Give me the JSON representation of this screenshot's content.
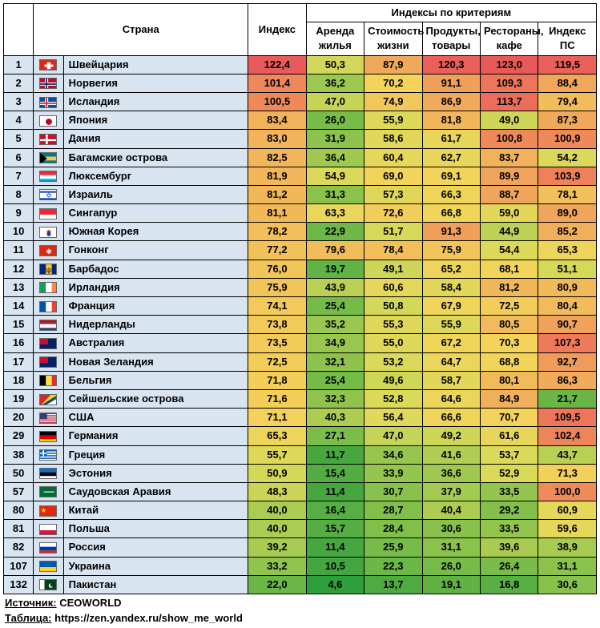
{
  "headers": {
    "country": "Страна",
    "index": "Индекс",
    "criteria_group": "Индексы по критериям",
    "rent": "Аренда жилья",
    "cost": "Стоимость жизни",
    "groceries": "Продукты, товары",
    "restaurants": "Рестораны, кафе",
    "pp": "Индекс ПС"
  },
  "footer": {
    "source_label": "Источник:",
    "source_value": "CEOWORLD",
    "table_label": "Таблица:",
    "table_value": "https://zen.yandex.ru/show_me_world"
  },
  "colorScale": {
    "min": 4.6,
    "max": 123.0,
    "stops": [
      {
        "v": 0.0,
        "c": "#2f9e3d"
      },
      {
        "v": 0.2,
        "c": "#7fbf4a"
      },
      {
        "v": 0.4,
        "c": "#d8d95a"
      },
      {
        "v": 0.55,
        "c": "#f3d45a"
      },
      {
        "v": 0.7,
        "c": "#f0a95a"
      },
      {
        "v": 0.85,
        "c": "#ee7e5a"
      },
      {
        "v": 1.0,
        "c": "#e85a5a"
      }
    ]
  },
  "flags": {
    "CH": [
      [
        "h",
        "#d52b1e",
        0,
        1
      ],
      [
        "rect",
        "#fff",
        0.4,
        0.2,
        0.2,
        0.6
      ],
      [
        "rect",
        "#fff",
        0.25,
        0.4,
        0.5,
        0.2
      ]
    ],
    "NO": [
      [
        "h",
        "#ba0c2f",
        0,
        1
      ],
      [
        "rect",
        "#fff",
        0.28,
        0,
        0.18,
        1
      ],
      [
        "rect",
        "#fff",
        0,
        0.36,
        1,
        0.28
      ],
      [
        "rect",
        "#00205b",
        0.33,
        0,
        0.08,
        1
      ],
      [
        "rect",
        "#00205b",
        0,
        0.44,
        1,
        0.12
      ]
    ],
    "IS": [
      [
        "h",
        "#02529c",
        0,
        1
      ],
      [
        "rect",
        "#fff",
        0.28,
        0,
        0.18,
        1
      ],
      [
        "rect",
        "#fff",
        0,
        0.36,
        1,
        0.28
      ],
      [
        "rect",
        "#dc1e35",
        0.33,
        0,
        0.08,
        1
      ],
      [
        "rect",
        "#dc1e35",
        0,
        0.44,
        1,
        0.12
      ]
    ],
    "JP": [
      [
        "h",
        "#fff",
        0,
        1
      ],
      [
        "circle",
        "#bc002d",
        0.5,
        0.5,
        0.28
      ]
    ],
    "DK": [
      [
        "h",
        "#c8102e",
        0,
        1
      ],
      [
        "rect",
        "#fff",
        0.32,
        0,
        0.12,
        1
      ],
      [
        "rect",
        "#fff",
        0,
        0.42,
        1,
        0.16
      ]
    ],
    "BS": [
      [
        "h",
        "#00778b",
        0,
        0.333
      ],
      [
        "h",
        "#ffc72c",
        0.333,
        0.333
      ],
      [
        "h",
        "#00778b",
        0.666,
        0.334
      ],
      [
        "tri",
        "#000",
        0,
        0,
        0.4,
        0.5,
        0,
        1
      ]
    ],
    "LU": [
      [
        "h",
        "#ed2939",
        0,
        0.333
      ],
      [
        "h",
        "#fff",
        0.333,
        0.333
      ],
      [
        "h",
        "#00a1de",
        0.666,
        0.334
      ]
    ],
    "IL": [
      [
        "h",
        "#fff",
        0,
        1
      ],
      [
        "h",
        "#0038b8",
        0.12,
        0.14
      ],
      [
        "h",
        "#0038b8",
        0.74,
        0.14
      ],
      [
        "text",
        "✡",
        "#0038b8",
        0.5,
        0.5
      ]
    ],
    "SG": [
      [
        "h",
        "#ed2939",
        0,
        0.5
      ],
      [
        "h",
        "#fff",
        0.5,
        0.5
      ]
    ],
    "KR": [
      [
        "h",
        "#fff",
        0,
        1
      ],
      [
        "circle",
        "#cd2e3a",
        0.5,
        0.4,
        0.18
      ],
      [
        "circle",
        "#0047a0",
        0.5,
        0.6,
        0.18
      ]
    ],
    "HK": [
      [
        "h",
        "#de2910",
        0,
        1
      ],
      [
        "text",
        "✱",
        "#fff",
        0.5,
        0.5
      ]
    ],
    "BB": [
      [
        "v",
        "#00267f",
        0,
        0.333
      ],
      [
        "v",
        "#ffc726",
        0.333,
        0.334
      ],
      [
        "v",
        "#00267f",
        0.667,
        0.333
      ],
      [
        "text",
        "ψ",
        "#000",
        0.5,
        0.5
      ]
    ],
    "IE": [
      [
        "v",
        "#169b62",
        0,
        0.333
      ],
      [
        "v",
        "#fff",
        0.333,
        0.334
      ],
      [
        "v",
        "#ff883e",
        0.667,
        0.333
      ]
    ],
    "FR": [
      [
        "v",
        "#0055a4",
        0,
        0.333
      ],
      [
        "v",
        "#fff",
        0.333,
        0.334
      ],
      [
        "v",
        "#ef4135",
        0.667,
        0.333
      ]
    ],
    "NL": [
      [
        "h",
        "#ae1c28",
        0,
        0.333
      ],
      [
        "h",
        "#fff",
        0.333,
        0.333
      ],
      [
        "h",
        "#21468b",
        0.666,
        0.334
      ]
    ],
    "AU": [
      [
        "h",
        "#012169",
        0,
        1
      ],
      [
        "rect",
        "#c8102e",
        0,
        0,
        0.45,
        0.5
      ]
    ],
    "NZ": [
      [
        "h",
        "#012169",
        0,
        1
      ],
      [
        "rect",
        "#c8102e",
        0,
        0,
        0.45,
        0.5
      ]
    ],
    "BE": [
      [
        "v",
        "#000",
        0,
        0.333
      ],
      [
        "v",
        "#fae042",
        0.333,
        0.334
      ],
      [
        "v",
        "#ed2939",
        0.667,
        0.333
      ]
    ],
    "SC": [
      [
        "h",
        "#003f87",
        0,
        1
      ],
      [
        "tri",
        "#fcd116",
        0,
        0,
        1,
        0,
        0,
        1
      ],
      [
        "tri",
        "#d62828",
        0,
        0,
        0.6,
        0,
        0,
        1
      ],
      [
        "tri",
        "#007a3d",
        1,
        1,
        1,
        0,
        0.4,
        1
      ],
      [
        "tri",
        "#fff",
        1,
        1,
        1,
        0.3,
        0.2,
        1
      ]
    ],
    "US": [
      [
        "h",
        "#b22234",
        0,
        1
      ],
      [
        "h",
        "#fff",
        0.077,
        0.077
      ],
      [
        "h",
        "#fff",
        0.231,
        0.077
      ],
      [
        "h",
        "#fff",
        0.385,
        0.077
      ],
      [
        "h",
        "#fff",
        0.538,
        0.077
      ],
      [
        "h",
        "#fff",
        0.692,
        0.077
      ],
      [
        "h",
        "#fff",
        0.846,
        0.077
      ],
      [
        "rect",
        "#3c3b6e",
        0,
        0,
        0.4,
        0.54
      ]
    ],
    "DE": [
      [
        "h",
        "#000",
        0,
        0.333
      ],
      [
        "h",
        "#dd0000",
        0.333,
        0.333
      ],
      [
        "h",
        "#ffce00",
        0.666,
        0.334
      ]
    ],
    "GR": [
      [
        "h",
        "#0d5eaf",
        0,
        1
      ],
      [
        "h",
        "#fff",
        0.111,
        0.111
      ],
      [
        "h",
        "#fff",
        0.333,
        0.111
      ],
      [
        "h",
        "#fff",
        0.555,
        0.111
      ],
      [
        "h",
        "#fff",
        0.777,
        0.111
      ],
      [
        "rect",
        "#0d5eaf",
        0,
        0,
        0.38,
        0.555
      ],
      [
        "rect",
        "#fff",
        0.15,
        0,
        0.08,
        0.555
      ],
      [
        "rect",
        "#fff",
        0,
        0.22,
        0.38,
        0.11
      ]
    ],
    "EE": [
      [
        "h",
        "#0072ce",
        0,
        0.333
      ],
      [
        "h",
        "#000",
        0.333,
        0.333
      ],
      [
        "h",
        "#fff",
        0.666,
        0.334
      ]
    ],
    "SA": [
      [
        "h",
        "#006c35",
        0,
        1
      ],
      [
        "rect",
        "#fff",
        0.2,
        0.4,
        0.6,
        0.08
      ]
    ],
    "CN": [
      [
        "h",
        "#de2910",
        0,
        1
      ],
      [
        "text",
        "★",
        "#ffde00",
        0.2,
        0.35
      ]
    ],
    "PL": [
      [
        "h",
        "#fff",
        0,
        0.5
      ],
      [
        "h",
        "#dc143c",
        0.5,
        0.5
      ]
    ],
    "RU": [
      [
        "h",
        "#fff",
        0,
        0.333
      ],
      [
        "h",
        "#0039a6",
        0.333,
        0.333
      ],
      [
        "h",
        "#d52b1e",
        0.666,
        0.334
      ]
    ],
    "UA": [
      [
        "h",
        "#0057b7",
        0,
        0.5
      ],
      [
        "h",
        "#ffd700",
        0.5,
        0.5
      ]
    ],
    "PK": [
      [
        "h",
        "#01411c",
        0,
        1
      ],
      [
        "v",
        "#fff",
        0,
        0.25
      ],
      [
        "circle",
        "#fff",
        0.62,
        0.5,
        0.2
      ],
      [
        "circle",
        "#01411c",
        0.68,
        0.44,
        0.17
      ]
    ]
  },
  "rows": [
    {
      "rank": 1,
      "flag": "CH",
      "name": "Швейцария",
      "v": [
        122.4,
        50.3,
        87.9,
        120.3,
        123.0,
        119.5
      ]
    },
    {
      "rank": 2,
      "flag": "NO",
      "name": "Норвегия",
      "v": [
        101.4,
        36.2,
        70.2,
        91.1,
        109.3,
        88.4
      ]
    },
    {
      "rank": 3,
      "flag": "IS",
      "name": "Исландия",
      "v": [
        100.5,
        47.0,
        74.9,
        86.9,
        113.7,
        79.4
      ]
    },
    {
      "rank": 4,
      "flag": "JP",
      "name": "Япония",
      "v": [
        83.4,
        26.0,
        55.9,
        81.8,
        49.0,
        87.3
      ]
    },
    {
      "rank": 5,
      "flag": "DK",
      "name": "Дания",
      "v": [
        83.0,
        31.9,
        58.6,
        61.7,
        100.8,
        100.9
      ]
    },
    {
      "rank": 6,
      "flag": "BS",
      "name": "Багамские острова",
      "v": [
        82.5,
        36.4,
        60.4,
        62.7,
        83.7,
        54.2
      ]
    },
    {
      "rank": 7,
      "flag": "LU",
      "name": "Люксембург",
      "v": [
        81.9,
        54.9,
        69.0,
        69.1,
        89.9,
        103.9
      ]
    },
    {
      "rank": 8,
      "flag": "IL",
      "name": "Израиль",
      "v": [
        81.2,
        31.3,
        57.3,
        66.3,
        88.7,
        78.1
      ]
    },
    {
      "rank": 9,
      "flag": "SG",
      "name": "Сингапур",
      "v": [
        81.1,
        63.3,
        72.6,
        66.8,
        59.0,
        89.0
      ]
    },
    {
      "rank": 10,
      "flag": "KR",
      "name": "Южная Корея",
      "v": [
        78.2,
        22.9,
        51.7,
        91.3,
        44.9,
        85.2
      ]
    },
    {
      "rank": 11,
      "flag": "HK",
      "name": "Гонконг",
      "v": [
        77.2,
        79.6,
        78.4,
        75.9,
        54.4,
        65.3
      ]
    },
    {
      "rank": 12,
      "flag": "BB",
      "name": "Барбадос",
      "v": [
        76.0,
        19.7,
        49.1,
        65.2,
        68.1,
        51.1
      ]
    },
    {
      "rank": 13,
      "flag": "IE",
      "name": "Ирландия",
      "v": [
        75.9,
        43.9,
        60.6,
        58.4,
        81.2,
        80.9
      ]
    },
    {
      "rank": 14,
      "flag": "FR",
      "name": "Франция",
      "v": [
        74.1,
        25.4,
        50.8,
        67.9,
        72.5,
        80.4
      ]
    },
    {
      "rank": 15,
      "flag": "NL",
      "name": "Нидерланды",
      "v": [
        73.8,
        35.2,
        55.3,
        55.9,
        80.5,
        90.7
      ]
    },
    {
      "rank": 16,
      "flag": "AU",
      "name": "Австралия",
      "v": [
        73.5,
        34.9,
        55.0,
        67.2,
        70.3,
        107.3
      ]
    },
    {
      "rank": 17,
      "flag": "NZ",
      "name": "Новая Зеландия",
      "v": [
        72.5,
        32.1,
        53.2,
        64.7,
        68.8,
        92.7
      ]
    },
    {
      "rank": 18,
      "flag": "BE",
      "name": "Бельгия",
      "v": [
        71.8,
        25.4,
        49.6,
        58.7,
        80.1,
        86.3
      ]
    },
    {
      "rank": 19,
      "flag": "SC",
      "name": "Сейшельские острова",
      "v": [
        71.6,
        32.3,
        52.8,
        64.6,
        84.9,
        21.7
      ]
    },
    {
      "rank": 20,
      "flag": "US",
      "name": "США",
      "v": [
        71.1,
        40.3,
        56.4,
        66.6,
        70.7,
        109.5
      ]
    },
    {
      "rank": 29,
      "flag": "DE",
      "name": "Германия",
      "v": [
        65.3,
        27.1,
        47.0,
        49.2,
        61.6,
        102.4
      ]
    },
    {
      "rank": 38,
      "flag": "GR",
      "name": "Греция",
      "v": [
        55.7,
        11.7,
        34.6,
        41.6,
        53.7,
        43.7
      ]
    },
    {
      "rank": 50,
      "flag": "EE",
      "name": "Эстония",
      "v": [
        50.9,
        15.4,
        33.9,
        36.6,
        52.9,
        71.3
      ]
    },
    {
      "rank": 57,
      "flag": "SA",
      "name": "Саудовская Аравия",
      "v": [
        48.3,
        11.4,
        30.7,
        37.9,
        33.5,
        100.0
      ]
    },
    {
      "rank": 80,
      "flag": "CN",
      "name": "Китай",
      "v": [
        40.0,
        16.4,
        28.7,
        40.4,
        29.2,
        60.9
      ]
    },
    {
      "rank": 81,
      "flag": "PL",
      "name": "Польша",
      "v": [
        40.0,
        15.7,
        28.4,
        30.6,
        33.5,
        59.6
      ]
    },
    {
      "rank": 82,
      "flag": "RU",
      "name": "Россия",
      "v": [
        39.2,
        11.4,
        25.9,
        31.1,
        39.6,
        38.9
      ]
    },
    {
      "rank": 107,
      "flag": "UA",
      "name": "Украина",
      "v": [
        33.2,
        10.5,
        22.3,
        26.0,
        26.4,
        31.1
      ]
    },
    {
      "rank": 132,
      "flag": "PK",
      "name": "Пакистан",
      "v": [
        22.0,
        4.6,
        13.7,
        19.1,
        16.8,
        30.6
      ]
    }
  ]
}
